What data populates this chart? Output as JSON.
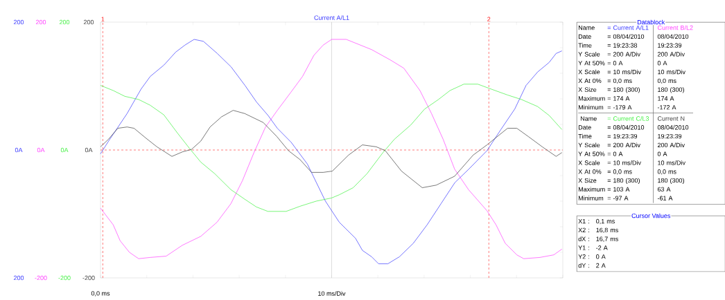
{
  "chart_data": [
    {
      "type": "line",
      "title": "Current A/L1",
      "annotations": [
        "200",
        "0A",
        "200",
        {
          "text": "1",
          "x": 0.1,
          "y": 200
        },
        {
          "text": "2",
          "x": 16.8,
          "y": 200
        }
      ],
      "xlim": [
        0,
        20
      ],
      "xticks": [
        {
          "value": 0,
          "label": "0,0 ms"
        },
        {
          "value": 2,
          "label": null
        },
        {
          "value": 4,
          "label": null
        },
        {
          "value": 6,
          "label": null
        },
        {
          "value": 8,
          "label": null
        },
        {
          "value": 10,
          "label": "10 ms/Div"
        },
        {
          "value": 12,
          "label": null
        },
        {
          "value": 14,
          "label": null
        },
        {
          "value": 16,
          "label": null
        },
        {
          "value": 18,
          "label": null
        },
        {
          "value": 20,
          "label": null
        }
      ],
      "ylim": [
        -200,
        200
      ],
      "yticks": [
        {
          "value": -200,
          "label": "-200"
        },
        {
          "value": -160,
          "label": null
        },
        {
          "value": -120,
          "label": null
        },
        {
          "value": -80,
          "label": null
        },
        {
          "value": -40,
          "label": null
        },
        {
          "value": 0,
          "label": "0A"
        },
        {
          "value": 40,
          "label": null
        },
        {
          "value": 80,
          "label": null
        },
        {
          "value": 120,
          "label": null
        },
        {
          "value": 160,
          "label": null
        },
        {
          "value": 200,
          "label": "200"
        }
      ],
      "y2lim": [
        -200,
        200
      ],
      "y2ticks": [
        {
          "value": -200,
          "label": "-200"
        },
        {
          "value": 0,
          "label": "0A"
        },
        {
          "value": 200,
          "label": "200"
        }
      ],
      "y3lim": [
        -200,
        200
      ],
      "y3ticks": [
        {
          "value": -200,
          "label": "-200"
        },
        {
          "value": 0,
          "label": "0A"
        },
        {
          "value": 200,
          "label": "200"
        }
      ],
      "ref_lines": [
        {
          "axis": "x",
          "value": 10,
          "color": "#c8c8c8",
          "line_style": "solid"
        },
        {
          "axis": "y",
          "value": 0,
          "color": "#ff2020",
          "line_style": "dashed"
        },
        {
          "axis": "x",
          "value": 0.1,
          "color": "#ff2020",
          "line_style": "dashed"
        },
        {
          "axis": "x",
          "value": 16.8,
          "color": "#ff2020",
          "line_style": "dashed"
        }
      ],
      "series": [
        {
          "color": "#3c3cff",
          "axis": "y3",
          "x": [
            0,
            0.35,
            1.15,
            1.75,
            2.15,
            2.75,
            3.25,
            3.65,
            4.05,
            4.45,
            5.05,
            5.65,
            6.25,
            6.75,
            7.25,
            7.65,
            8.25,
            8.95,
            9.73,
            10.33,
            11.03,
            11.33,
            11.73,
            12.03,
            12.43,
            12.93,
            13.53,
            14.13,
            14.73,
            15.33,
            15.93,
            16.72,
            17.32,
            17.92,
            18.41,
            18.91,
            19.41,
            19.71,
            19.96
          ],
          "values": [
            -6,
            14,
            57,
            95,
            115,
            133,
            153,
            164,
            173,
            170,
            151,
            130,
            101,
            75,
            54,
            34,
            12,
            -22,
            -80,
            -113,
            -138,
            -157,
            -167,
            -178,
            -178,
            -167,
            -146,
            -117,
            -84,
            -51,
            -30,
            -1,
            32,
            64,
            101,
            122,
            137,
            151,
            155
          ]
        },
        {
          "color": "#ff40ff",
          "axis": "y3",
          "x": [
            0,
            0.55,
            0.85,
            1.25,
            1.65,
            2.15,
            2.84,
            3.54,
            4.34,
            5.04,
            5.64,
            6.14,
            6.64,
            7.14,
            7.63,
            8.23,
            8.74,
            9.23,
            9.63,
            10.0,
            10.63,
            11.73,
            12.53,
            13.12,
            13.82,
            14.32,
            14.82,
            15.32,
            15.92,
            16.72,
            17.11,
            17.51,
            18.01,
            18.31,
            19.01,
            19.61,
            19.96
          ],
          "values": [
            -91,
            -117,
            -142,
            -160,
            -170,
            -168,
            -166,
            -149,
            -135,
            -113,
            -84,
            -48,
            -4,
            36,
            61,
            90,
            115,
            148,
            164,
            173,
            173,
            157,
            141,
            128,
            93,
            57,
            17,
            -30,
            -62,
            -95,
            -117,
            -146,
            -164,
            -170,
            -168,
            -164,
            -155
          ]
        },
        {
          "color": "#40f040",
          "axis": "y2",
          "x": [
            0,
            0.55,
            1.05,
            1.65,
            2.15,
            2.74,
            3.34,
            3.84,
            4.34,
            4.94,
            5.64,
            6.24,
            6.74,
            7.24,
            8.03,
            8.63,
            9.33,
            10.0,
            10.33,
            10.93,
            11.53,
            12.22,
            12.72,
            13.42,
            14.02,
            14.62,
            15.12,
            15.72,
            16.32,
            16.92,
            17.61,
            18.21,
            18.91,
            19.41,
            19.96
          ],
          "values": [
            101,
            93,
            84,
            79,
            70,
            55,
            26,
            3,
            -19,
            -37,
            -62,
            -77,
            -89,
            -96,
            -96,
            -88,
            -80,
            -75,
            -70,
            -59,
            -37,
            -4,
            17,
            39,
            64,
            79,
            93,
            103,
            103,
            95,
            86,
            79,
            68,
            54,
            32
          ]
        },
        {
          "color": "#404040",
          "axis": "y",
          "x": [
            0,
            0.35,
            0.75,
            1.15,
            1.45,
            1.95,
            2.44,
            3.09,
            3.54,
            3.94,
            4.34,
            4.74,
            5.24,
            5.74,
            6.24,
            7.04,
            7.63,
            8.13,
            8.63,
            9.13,
            9.63,
            10.03,
            10.73,
            11.33,
            11.93,
            12.32,
            13.02,
            13.92,
            14.52,
            15.32,
            16.12,
            16.72,
            17.61,
            18.01,
            18.51,
            19.11,
            19.71,
            19.96
          ],
          "values": [
            5,
            17,
            34,
            36,
            34,
            19,
            5,
            -10,
            -3,
            1,
            14,
            36,
            52,
            62,
            57,
            43,
            21,
            -1,
            -15,
            -35,
            -35,
            -33,
            -8,
            8,
            5,
            -1,
            -33,
            -59,
            -55,
            -41,
            -8,
            8,
            34,
            34,
            21,
            5,
            -10,
            -4
          ]
        }
      ]
    },
    {
      "type": "other",
      "title": "Datablock",
      "annotations": [
        "Name",
        "= Current A/L1",
        "Current B/L2",
        "Date",
        "= 08/04/2010",
        "08/04/2010",
        "Time",
        "= 19:23:38",
        "19:23:39",
        "Y Scale",
        "= 200 A/Div",
        "200 A/Div",
        "Y At 50%",
        "= 0 A",
        "0 A",
        "X Scale",
        "= 10 ms/Div",
        "10 ms/Div",
        "X At 0%",
        "= 0,0 ms",
        "0,0 ms",
        "X Size",
        "= 180 (300)",
        "180 (300)",
        "Maximum",
        "= 174 A",
        "174 A",
        "Minimum",
        "= -179 A",
        "-172 A",
        "Name",
        "= Current C/L3",
        "Current N",
        "Date",
        "= 08/04/2010",
        "08/04/2010",
        "Time",
        "= 19:23:39",
        "19:23:39",
        "Y Scale",
        "= 200 A/Div",
        "200 A/Div",
        "Y At 50%",
        "= 0 A",
        "0 A",
        "X Scale",
        "= 10 ms/Div",
        "10 ms/Div",
        "X At 0%",
        "= 0,0 ms",
        "0,0 ms",
        "X Size",
        "= 180 (300)",
        "180 (300)",
        "Maximum",
        "= 103 A",
        "63 A",
        "Minimum",
        "= -97 A",
        "-61 A"
      ]
    },
    {
      "type": "other",
      "title": "Cursor Values",
      "annotations": [
        "X1 :",
        "0,1 ms",
        "X2 :",
        "16,8 ms",
        "dX :",
        "16,7 ms",
        "Y1 :",
        "-2 A",
        "Y2 :",
        "0 A",
        "dY :",
        "2 A"
      ]
    }
  ]
}
